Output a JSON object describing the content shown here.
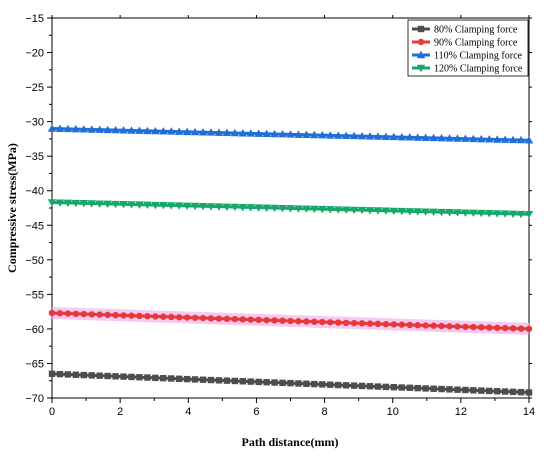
{
  "chart_data": {
    "type": "line",
    "title": "",
    "xlabel": "Path distance(mm)",
    "ylabel": "Compressive stress(MPa)",
    "xlim": [
      0,
      14
    ],
    "ylim": [
      -70,
      -15
    ],
    "x_ticks": [
      0,
      2,
      4,
      6,
      8,
      10,
      12,
      14
    ],
    "y_ticks": [
      -15,
      -20,
      -25,
      -30,
      -35,
      -40,
      -45,
      -50,
      -55,
      -60,
      -65,
      -70
    ],
    "grid": false,
    "legend_position": "top-right",
    "x_samples": 60,
    "series": [
      {
        "name": "80% Clamping force",
        "color": "#4d4d4d",
        "marker": "square",
        "start": -66.5,
        "end": -69.2
      },
      {
        "name": "90% Clamping force",
        "color": "#e8393a",
        "marker": "circle",
        "start": -57.7,
        "end": -60.0
      },
      {
        "name": "110% Clamping force",
        "color": "#1f6fd6",
        "marker": "triangle-up",
        "start": -31.0,
        "end": -32.7
      },
      {
        "name": "120% Clamping force",
        "color": "#14a86a",
        "marker": "triangle-down",
        "start": -41.7,
        "end": -43.4
      }
    ],
    "highlight_band": {
      "series": "90% Clamping force",
      "color": "#f3b8ee"
    }
  }
}
